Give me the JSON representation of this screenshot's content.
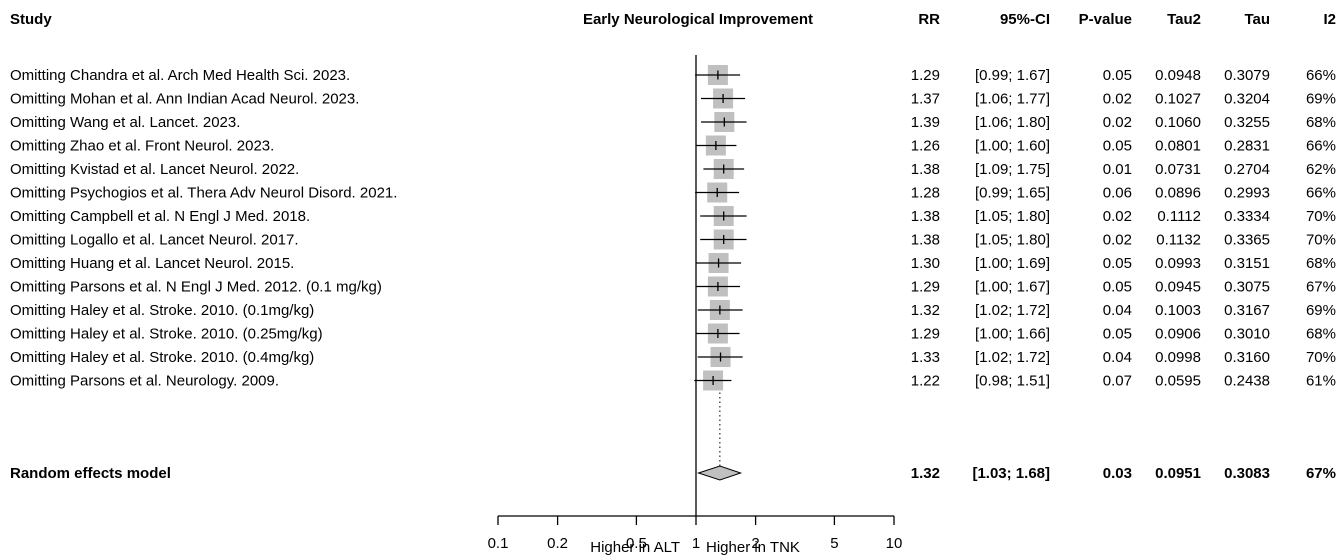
{
  "chart_data": {
    "type": "forest",
    "title": "Early Neurological Improvement",
    "columns": {
      "study": "Study",
      "rr": "RR",
      "ci": "95%-CI",
      "pvalue": "P-value",
      "tau2": "Tau2",
      "tau": "Tau",
      "i2": "I2"
    },
    "rows": [
      {
        "study": "Omitting Chandra et al. Arch Med Health Sci. 2023.",
        "rr": 1.29,
        "lower": 0.99,
        "upper": 1.67,
        "rr_text": "1.29",
        "ci_text": "[0.99; 1.67]",
        "p_text": "0.05",
        "tau2_text": "0.0948",
        "tau_text": "0.3079",
        "i2_text": "66%"
      },
      {
        "study": "Omitting Mohan et al. Ann Indian Acad Neurol. 2023.",
        "rr": 1.37,
        "lower": 1.06,
        "upper": 1.77,
        "rr_text": "1.37",
        "ci_text": "[1.06; 1.77]",
        "p_text": "0.02",
        "tau2_text": "0.1027",
        "tau_text": "0.3204",
        "i2_text": "69%"
      },
      {
        "study": "Omitting Wang et al. Lancet. 2023.",
        "rr": 1.39,
        "lower": 1.06,
        "upper": 1.8,
        "rr_text": "1.39",
        "ci_text": "[1.06; 1.80]",
        "p_text": "0.02",
        "tau2_text": "0.1060",
        "tau_text": "0.3255",
        "i2_text": "68%"
      },
      {
        "study": "Omitting Zhao et al. Front Neurol. 2023.",
        "rr": 1.26,
        "lower": 1.0,
        "upper": 1.6,
        "rr_text": "1.26",
        "ci_text": "[1.00; 1.60]",
        "p_text": "0.05",
        "tau2_text": "0.0801",
        "tau_text": "0.2831",
        "i2_text": "66%"
      },
      {
        "study": "Omitting Kvistad et al. Lancet Neurol. 2022.",
        "rr": 1.38,
        "lower": 1.09,
        "upper": 1.75,
        "rr_text": "1.38",
        "ci_text": "[1.09; 1.75]",
        "p_text": "0.01",
        "tau2_text": "0.0731",
        "tau_text": "0.2704",
        "i2_text": "62%"
      },
      {
        "study": "Omitting Psychogios et al. Thera Adv Neurol Disord. 2021.",
        "rr": 1.28,
        "lower": 0.99,
        "upper": 1.65,
        "rr_text": "1.28",
        "ci_text": "[0.99; 1.65]",
        "p_text": "0.06",
        "tau2_text": "0.0896",
        "tau_text": "0.2993",
        "i2_text": "66%"
      },
      {
        "study": "Omitting Campbell et al. N Engl J Med. 2018.",
        "rr": 1.38,
        "lower": 1.05,
        "upper": 1.8,
        "rr_text": "1.38",
        "ci_text": "[1.05; 1.80]",
        "p_text": "0.02",
        "tau2_text": "0.1112",
        "tau_text": "0.3334",
        "i2_text": "70%"
      },
      {
        "study": "Omitting Logallo et al. Lancet Neurol. 2017.",
        "rr": 1.38,
        "lower": 1.05,
        "upper": 1.8,
        "rr_text": "1.38",
        "ci_text": "[1.05; 1.80]",
        "p_text": "0.02",
        "tau2_text": "0.1132",
        "tau_text": "0.3365",
        "i2_text": "70%"
      },
      {
        "study": "Omitting Huang et al. Lancet Neurol. 2015.",
        "rr": 1.3,
        "lower": 1.0,
        "upper": 1.69,
        "rr_text": "1.30",
        "ci_text": "[1.00; 1.69]",
        "p_text": "0.05",
        "tau2_text": "0.0993",
        "tau_text": "0.3151",
        "i2_text": "68%"
      },
      {
        "study": "Omitting Parsons et al. N Engl J Med. 2012. (0.1 mg/kg)",
        "rr": 1.29,
        "lower": 1.0,
        "upper": 1.67,
        "rr_text": "1.29",
        "ci_text": "[1.00; 1.67]",
        "p_text": "0.05",
        "tau2_text": "0.0945",
        "tau_text": "0.3075",
        "i2_text": "67%"
      },
      {
        "study": "Omitting Haley et al. Stroke. 2010. (0.1mg/kg)",
        "rr": 1.32,
        "lower": 1.02,
        "upper": 1.72,
        "rr_text": "1.32",
        "ci_text": "[1.02; 1.72]",
        "p_text": "0.04",
        "tau2_text": "0.1003",
        "tau_text": "0.3167",
        "i2_text": "69%"
      },
      {
        "study": "Omitting Haley et al. Stroke. 2010. (0.25mg/kg)",
        "rr": 1.29,
        "lower": 1.0,
        "upper": 1.66,
        "rr_text": "1.29",
        "ci_text": "[1.00; 1.66]",
        "p_text": "0.05",
        "tau2_text": "0.0906",
        "tau_text": "0.3010",
        "i2_text": "68%"
      },
      {
        "study": "Omitting Haley et al. Stroke. 2010. (0.4mg/kg)",
        "rr": 1.33,
        "lower": 1.02,
        "upper": 1.72,
        "rr_text": "1.33",
        "ci_text": "[1.02; 1.72]",
        "p_text": "0.04",
        "tau2_text": "0.0998",
        "tau_text": "0.3160",
        "i2_text": "70%"
      },
      {
        "study": "Omitting Parsons et al. Neurology. 2009.",
        "rr": 1.22,
        "lower": 0.98,
        "upper": 1.51,
        "rr_text": "1.22",
        "ci_text": "[0.98; 1.51]",
        "p_text": "0.07",
        "tau2_text": "0.0595",
        "tau_text": "0.2438",
        "i2_text": "61%"
      }
    ],
    "summary": {
      "study": "Random effects model",
      "rr": 1.32,
      "lower": 1.03,
      "upper": 1.68,
      "rr_text": "1.32",
      "ci_text": "[1.03; 1.68]",
      "p_text": "0.03",
      "tau2_text": "0.0951",
      "tau_text": "0.3083",
      "i2_text": "67%"
    },
    "x_axis": {
      "scale": "log",
      "range": [
        0.1,
        10
      ],
      "ticks": [
        0.1,
        0.2,
        0.5,
        1,
        2,
        5,
        10
      ],
      "tick_labels": [
        "0.1",
        "0.2",
        "0.5",
        "1",
        "2",
        "5",
        "10"
      ],
      "reference_line": 1,
      "left_label": "Higher in ALT",
      "right_label": "Higher in TNK"
    },
    "colors": {
      "square": "#c0c0c0",
      "diamond": "#c0c0c0",
      "line": "#000000"
    }
  }
}
